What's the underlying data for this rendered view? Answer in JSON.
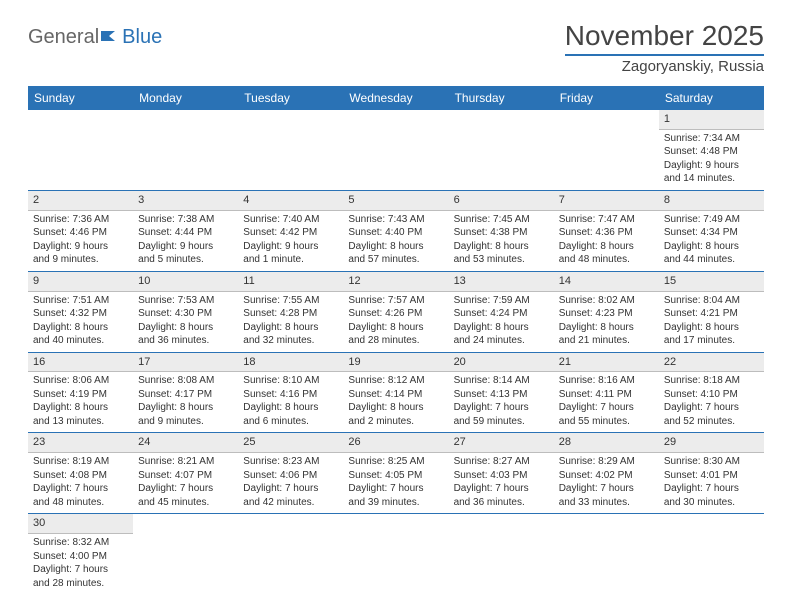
{
  "logo": {
    "text_general": "General",
    "text_blue": "Blue"
  },
  "header": {
    "month_title": "November 2025",
    "location": "Zagoryanskiy, Russia"
  },
  "colors": {
    "header_bg": "#2a72b5",
    "header_text": "#ffffff",
    "daynum_bg": "#ececec",
    "rule": "#2a72b5",
    "body_text": "#333333"
  },
  "day_headers": [
    "Sunday",
    "Monday",
    "Tuesday",
    "Wednesday",
    "Thursday",
    "Friday",
    "Saturday"
  ],
  "weeks": [
    [
      {
        "n": "",
        "l1": "",
        "l2": "",
        "l3": "",
        "l4": ""
      },
      {
        "n": "",
        "l1": "",
        "l2": "",
        "l3": "",
        "l4": ""
      },
      {
        "n": "",
        "l1": "",
        "l2": "",
        "l3": "",
        "l4": ""
      },
      {
        "n": "",
        "l1": "",
        "l2": "",
        "l3": "",
        "l4": ""
      },
      {
        "n": "",
        "l1": "",
        "l2": "",
        "l3": "",
        "l4": ""
      },
      {
        "n": "",
        "l1": "",
        "l2": "",
        "l3": "",
        "l4": ""
      },
      {
        "n": "1",
        "l1": "Sunrise: 7:34 AM",
        "l2": "Sunset: 4:48 PM",
        "l3": "Daylight: 9 hours",
        "l4": "and 14 minutes."
      }
    ],
    [
      {
        "n": "2",
        "l1": "Sunrise: 7:36 AM",
        "l2": "Sunset: 4:46 PM",
        "l3": "Daylight: 9 hours",
        "l4": "and 9 minutes."
      },
      {
        "n": "3",
        "l1": "Sunrise: 7:38 AM",
        "l2": "Sunset: 4:44 PM",
        "l3": "Daylight: 9 hours",
        "l4": "and 5 minutes."
      },
      {
        "n": "4",
        "l1": "Sunrise: 7:40 AM",
        "l2": "Sunset: 4:42 PM",
        "l3": "Daylight: 9 hours",
        "l4": "and 1 minute."
      },
      {
        "n": "5",
        "l1": "Sunrise: 7:43 AM",
        "l2": "Sunset: 4:40 PM",
        "l3": "Daylight: 8 hours",
        "l4": "and 57 minutes."
      },
      {
        "n": "6",
        "l1": "Sunrise: 7:45 AM",
        "l2": "Sunset: 4:38 PM",
        "l3": "Daylight: 8 hours",
        "l4": "and 53 minutes."
      },
      {
        "n": "7",
        "l1": "Sunrise: 7:47 AM",
        "l2": "Sunset: 4:36 PM",
        "l3": "Daylight: 8 hours",
        "l4": "and 48 minutes."
      },
      {
        "n": "8",
        "l1": "Sunrise: 7:49 AM",
        "l2": "Sunset: 4:34 PM",
        "l3": "Daylight: 8 hours",
        "l4": "and 44 minutes."
      }
    ],
    [
      {
        "n": "9",
        "l1": "Sunrise: 7:51 AM",
        "l2": "Sunset: 4:32 PM",
        "l3": "Daylight: 8 hours",
        "l4": "and 40 minutes."
      },
      {
        "n": "10",
        "l1": "Sunrise: 7:53 AM",
        "l2": "Sunset: 4:30 PM",
        "l3": "Daylight: 8 hours",
        "l4": "and 36 minutes."
      },
      {
        "n": "11",
        "l1": "Sunrise: 7:55 AM",
        "l2": "Sunset: 4:28 PM",
        "l3": "Daylight: 8 hours",
        "l4": "and 32 minutes."
      },
      {
        "n": "12",
        "l1": "Sunrise: 7:57 AM",
        "l2": "Sunset: 4:26 PM",
        "l3": "Daylight: 8 hours",
        "l4": "and 28 minutes."
      },
      {
        "n": "13",
        "l1": "Sunrise: 7:59 AM",
        "l2": "Sunset: 4:24 PM",
        "l3": "Daylight: 8 hours",
        "l4": "and 24 minutes."
      },
      {
        "n": "14",
        "l1": "Sunrise: 8:02 AM",
        "l2": "Sunset: 4:23 PM",
        "l3": "Daylight: 8 hours",
        "l4": "and 21 minutes."
      },
      {
        "n": "15",
        "l1": "Sunrise: 8:04 AM",
        "l2": "Sunset: 4:21 PM",
        "l3": "Daylight: 8 hours",
        "l4": "and 17 minutes."
      }
    ],
    [
      {
        "n": "16",
        "l1": "Sunrise: 8:06 AM",
        "l2": "Sunset: 4:19 PM",
        "l3": "Daylight: 8 hours",
        "l4": "and 13 minutes."
      },
      {
        "n": "17",
        "l1": "Sunrise: 8:08 AM",
        "l2": "Sunset: 4:17 PM",
        "l3": "Daylight: 8 hours",
        "l4": "and 9 minutes."
      },
      {
        "n": "18",
        "l1": "Sunrise: 8:10 AM",
        "l2": "Sunset: 4:16 PM",
        "l3": "Daylight: 8 hours",
        "l4": "and 6 minutes."
      },
      {
        "n": "19",
        "l1": "Sunrise: 8:12 AM",
        "l2": "Sunset: 4:14 PM",
        "l3": "Daylight: 8 hours",
        "l4": "and 2 minutes."
      },
      {
        "n": "20",
        "l1": "Sunrise: 8:14 AM",
        "l2": "Sunset: 4:13 PM",
        "l3": "Daylight: 7 hours",
        "l4": "and 59 minutes."
      },
      {
        "n": "21",
        "l1": "Sunrise: 8:16 AM",
        "l2": "Sunset: 4:11 PM",
        "l3": "Daylight: 7 hours",
        "l4": "and 55 minutes."
      },
      {
        "n": "22",
        "l1": "Sunrise: 8:18 AM",
        "l2": "Sunset: 4:10 PM",
        "l3": "Daylight: 7 hours",
        "l4": "and 52 minutes."
      }
    ],
    [
      {
        "n": "23",
        "l1": "Sunrise: 8:19 AM",
        "l2": "Sunset: 4:08 PM",
        "l3": "Daylight: 7 hours",
        "l4": "and 48 minutes."
      },
      {
        "n": "24",
        "l1": "Sunrise: 8:21 AM",
        "l2": "Sunset: 4:07 PM",
        "l3": "Daylight: 7 hours",
        "l4": "and 45 minutes."
      },
      {
        "n": "25",
        "l1": "Sunrise: 8:23 AM",
        "l2": "Sunset: 4:06 PM",
        "l3": "Daylight: 7 hours",
        "l4": "and 42 minutes."
      },
      {
        "n": "26",
        "l1": "Sunrise: 8:25 AM",
        "l2": "Sunset: 4:05 PM",
        "l3": "Daylight: 7 hours",
        "l4": "and 39 minutes."
      },
      {
        "n": "27",
        "l1": "Sunrise: 8:27 AM",
        "l2": "Sunset: 4:03 PM",
        "l3": "Daylight: 7 hours",
        "l4": "and 36 minutes."
      },
      {
        "n": "28",
        "l1": "Sunrise: 8:29 AM",
        "l2": "Sunset: 4:02 PM",
        "l3": "Daylight: 7 hours",
        "l4": "and 33 minutes."
      },
      {
        "n": "29",
        "l1": "Sunrise: 8:30 AM",
        "l2": "Sunset: 4:01 PM",
        "l3": "Daylight: 7 hours",
        "l4": "and 30 minutes."
      }
    ],
    [
      {
        "n": "30",
        "l1": "Sunrise: 8:32 AM",
        "l2": "Sunset: 4:00 PM",
        "l3": "Daylight: 7 hours",
        "l4": "and 28 minutes."
      },
      {
        "n": "",
        "l1": "",
        "l2": "",
        "l3": "",
        "l4": ""
      },
      {
        "n": "",
        "l1": "",
        "l2": "",
        "l3": "",
        "l4": ""
      },
      {
        "n": "",
        "l1": "",
        "l2": "",
        "l3": "",
        "l4": ""
      },
      {
        "n": "",
        "l1": "",
        "l2": "",
        "l3": "",
        "l4": ""
      },
      {
        "n": "",
        "l1": "",
        "l2": "",
        "l3": "",
        "l4": ""
      },
      {
        "n": "",
        "l1": "",
        "l2": "",
        "l3": "",
        "l4": ""
      }
    ]
  ]
}
